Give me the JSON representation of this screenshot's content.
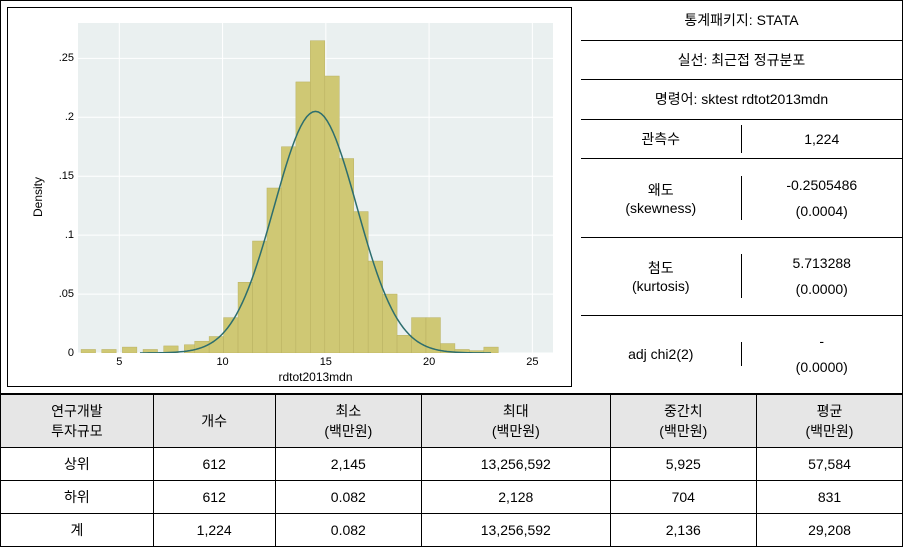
{
  "chart": {
    "type": "histogram",
    "ylabel": "Density",
    "xlabel": "rdtot2013mdn",
    "background_color": "#ffffff",
    "plot_bg_color": "#eaf0f0",
    "bar_color": "#cfc874",
    "bar_border_color": "#b8b060",
    "curve_color": "#2d6e6e",
    "curve_width": 1.5,
    "grid_color": "#ffffff",
    "xlim": [
      3,
      26
    ],
    "ylim": [
      0,
      0.28
    ],
    "xticks": [
      5,
      10,
      15,
      20,
      25
    ],
    "yticks": [
      0,
      0.05,
      0.1,
      0.15,
      0.2,
      0.25
    ],
    "ytick_labels": [
      "0",
      ".05",
      ".1",
      ".15",
      ".2",
      ".25"
    ],
    "bar_width": 0.7,
    "bars": [
      {
        "x": 3.5,
        "y": 0.003
      },
      {
        "x": 4.5,
        "y": 0.003
      },
      {
        "x": 5.5,
        "y": 0.005
      },
      {
        "x": 6.5,
        "y": 0.003
      },
      {
        "x": 7.5,
        "y": 0.006
      },
      {
        "x": 8.5,
        "y": 0.007
      },
      {
        "x": 9.0,
        "y": 0.01
      },
      {
        "x": 9.7,
        "y": 0.014
      },
      {
        "x": 10.4,
        "y": 0.03
      },
      {
        "x": 11.1,
        "y": 0.06
      },
      {
        "x": 11.8,
        "y": 0.095
      },
      {
        "x": 12.5,
        "y": 0.14
      },
      {
        "x": 13.2,
        "y": 0.175
      },
      {
        "x": 13.9,
        "y": 0.23
      },
      {
        "x": 14.6,
        "y": 0.265
      },
      {
        "x": 15.3,
        "y": 0.235
      },
      {
        "x": 16.0,
        "y": 0.165
      },
      {
        "x": 16.7,
        "y": 0.12
      },
      {
        "x": 17.4,
        "y": 0.078
      },
      {
        "x": 18.1,
        "y": 0.05
      },
      {
        "x": 18.8,
        "y": 0.015
      },
      {
        "x": 19.5,
        "y": 0.03
      },
      {
        "x": 20.2,
        "y": 0.03
      },
      {
        "x": 20.9,
        "y": 0.008
      },
      {
        "x": 21.6,
        "y": 0.003
      },
      {
        "x": 22.3,
        "y": 0.002
      },
      {
        "x": 23.0,
        "y": 0.005
      }
    ],
    "curve_mean": 14.5,
    "curve_std": 2.0,
    "curve_peak": 0.205,
    "curve_start": 6,
    "curve_end": 23
  },
  "info": {
    "package": "통계패키지: STATA",
    "solid_line": "실선: 최근접 정규분포",
    "command": "명령어: sktest rdtot2013mdn",
    "obs_label": "관측수",
    "obs_value": "1,224",
    "skew_label": "왜도",
    "skew_sublabel": "(skewness)",
    "skew_value": "-0.2505486",
    "skew_pvalue": "(0.0004)",
    "kurt_label": "첨도",
    "kurt_sublabel": "(kurtosis)",
    "kurt_value": "5.713288",
    "kurt_pvalue": "(0.0000)",
    "chi2_label": "adj chi2(2)",
    "chi2_value": "-",
    "chi2_pvalue": "(0.0000)"
  },
  "table": {
    "header_bg": "#e6e6e6",
    "columns": [
      "연구개발\n투자규모",
      "개수",
      "최소\n(백만원)",
      "최대\n(백만원)",
      "중간치\n(백만원)",
      "평균\n(백만원)"
    ],
    "rows": [
      [
        "상위",
        "612",
        "2,145",
        "13,256,592",
        "5,925",
        "57,584"
      ],
      [
        "하위",
        "612",
        "0.082",
        "2,128",
        "704",
        "831"
      ],
      [
        "계",
        "1,224",
        "0.082",
        "13,256,592",
        "2,136",
        "29,208"
      ]
    ]
  }
}
